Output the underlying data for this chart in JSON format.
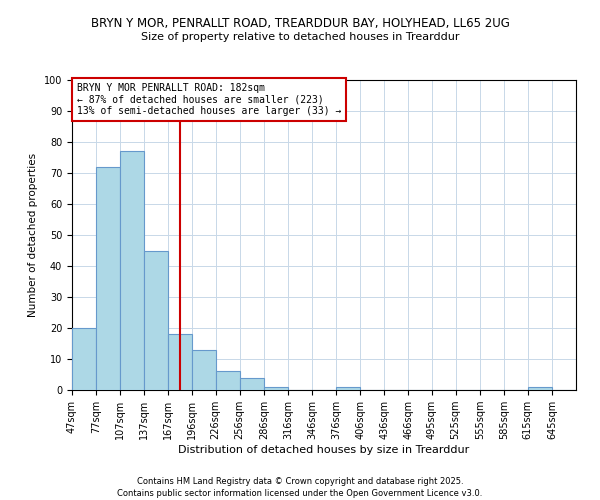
{
  "title1": "BRYN Y MOR, PENRALLT ROAD, TREARDDUR BAY, HOLYHEAD, LL65 2UG",
  "title2": "Size of property relative to detached houses in Trearddur",
  "xlabel": "Distribution of detached houses by size in Trearddur",
  "ylabel": "Number of detached properties",
  "bar_labels": [
    "47sqm",
    "77sqm",
    "107sqm",
    "137sqm",
    "167sqm",
    "196sqm",
    "226sqm",
    "256sqm",
    "286sqm",
    "316sqm",
    "346sqm",
    "376sqm",
    "406sqm",
    "436sqm",
    "466sqm",
    "495sqm",
    "525sqm",
    "555sqm",
    "585sqm",
    "615sqm",
    "645sqm"
  ],
  "bar_values": [
    20,
    72,
    77,
    45,
    18,
    13,
    6,
    4,
    1,
    0,
    0,
    1,
    0,
    0,
    0,
    0,
    0,
    0,
    0,
    1,
    0
  ],
  "bar_color": "#add8e6",
  "bar_edge_color": "#6699cc",
  "background_color": "#ffffff",
  "grid_color": "#c8d8e8",
  "ylim": [
    0,
    100
  ],
  "property_line_x": 182,
  "property_line_color": "#cc0000",
  "annotation_title": "BRYN Y MOR PENRALLT ROAD: 182sqm",
  "annotation_line1": "← 87% of detached houses are smaller (223)",
  "annotation_line2": "13% of semi-detached houses are larger (33) →",
  "annotation_box_color": "#cc0000",
  "footnote1": "Contains HM Land Registry data © Crown copyright and database right 2025.",
  "footnote2": "Contains public sector information licensed under the Open Government Licence v3.0.",
  "bin_edges": [
    47,
    77,
    107,
    137,
    167,
    196,
    226,
    256,
    286,
    316,
    346,
    376,
    406,
    436,
    466,
    495,
    525,
    555,
    585,
    615,
    645,
    675
  ]
}
